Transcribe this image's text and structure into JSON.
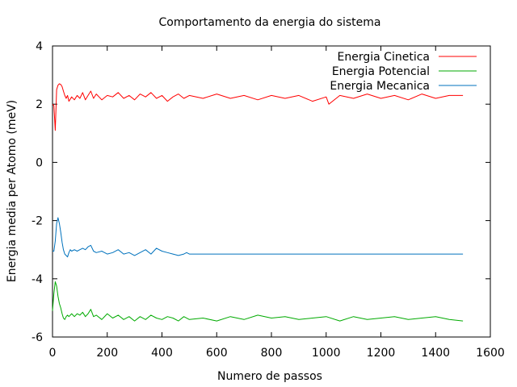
{
  "chart_data": {
    "type": "line",
    "title": "Comportamento da energia do sistema",
    "xlabel": "Numero de passos",
    "ylabel": "Energia media per Atomo (meV)",
    "xlim": [
      0,
      1600
    ],
    "ylim": [
      -6,
      4
    ],
    "xticks": [
      "0",
      "200",
      "400",
      "600",
      "800",
      "1000",
      "1200",
      "1400",
      "1600"
    ],
    "yticks": [
      "-6",
      "-4",
      "-2",
      "0",
      "2",
      "4"
    ],
    "grid": false,
    "legend_position": "top-right",
    "series": [
      {
        "name": "Energia Cinetica",
        "color": "#ff0000",
        "x": [
          0,
          5,
          10,
          15,
          20,
          25,
          30,
          35,
          40,
          45,
          50,
          55,
          60,
          70,
          80,
          90,
          100,
          110,
          120,
          130,
          140,
          150,
          160,
          180,
          200,
          220,
          240,
          260,
          280,
          300,
          320,
          340,
          360,
          380,
          400,
          420,
          440,
          460,
          480,
          500,
          550,
          600,
          650,
          700,
          750,
          800,
          850,
          900,
          950,
          1000,
          1010,
          1050,
          1100,
          1150,
          1200,
          1250,
          1300,
          1350,
          1400,
          1450,
          1500
        ],
        "y": [
          2.0,
          1.95,
          1.1,
          2.5,
          2.65,
          2.7,
          2.68,
          2.6,
          2.45,
          2.3,
          2.2,
          2.3,
          2.1,
          2.25,
          2.15,
          2.3,
          2.2,
          2.4,
          2.15,
          2.3,
          2.45,
          2.2,
          2.35,
          2.15,
          2.3,
          2.25,
          2.4,
          2.2,
          2.3,
          2.15,
          2.35,
          2.25,
          2.4,
          2.2,
          2.3,
          2.1,
          2.25,
          2.35,
          2.2,
          2.3,
          2.2,
          2.35,
          2.2,
          2.3,
          2.15,
          2.3,
          2.2,
          2.3,
          2.1,
          2.25,
          2.0,
          2.3,
          2.2,
          2.35,
          2.2,
          2.3,
          2.15,
          2.35,
          2.2,
          2.3,
          2.3
        ]
      },
      {
        "name": "Energia Potencial",
        "color": "#00aa00",
        "x": [
          0,
          5,
          10,
          15,
          20,
          25,
          30,
          35,
          40,
          45,
          50,
          55,
          60,
          70,
          80,
          90,
          100,
          110,
          120,
          130,
          140,
          150,
          160,
          180,
          200,
          220,
          240,
          260,
          280,
          300,
          320,
          340,
          360,
          380,
          400,
          420,
          440,
          460,
          480,
          500,
          550,
          600,
          650,
          700,
          750,
          800,
          850,
          900,
          950,
          1000,
          1050,
          1100,
          1150,
          1200,
          1250,
          1300,
          1350,
          1400,
          1450,
          1500
        ],
        "y": [
          -5.1,
          -4.5,
          -4.1,
          -4.25,
          -4.6,
          -4.85,
          -5.0,
          -5.2,
          -5.35,
          -5.4,
          -5.3,
          -5.25,
          -5.3,
          -5.2,
          -5.3,
          -5.2,
          -5.25,
          -5.15,
          -5.3,
          -5.2,
          -5.05,
          -5.3,
          -5.25,
          -5.4,
          -5.2,
          -5.35,
          -5.25,
          -5.4,
          -5.3,
          -5.45,
          -5.3,
          -5.4,
          -5.25,
          -5.35,
          -5.4,
          -5.3,
          -5.35,
          -5.45,
          -5.3,
          -5.4,
          -5.35,
          -5.45,
          -5.3,
          -5.4,
          -5.25,
          -5.35,
          -5.3,
          -5.4,
          -5.35,
          -5.3,
          -5.45,
          -5.3,
          -5.4,
          -5.35,
          -5.3,
          -5.4,
          -5.35,
          -5.3,
          -5.4,
          -5.45
        ]
      },
      {
        "name": "Energia Mecanica",
        "color": "#0072bd",
        "x": [
          0,
          5,
          10,
          15,
          20,
          25,
          30,
          35,
          40,
          45,
          50,
          55,
          60,
          65,
          70,
          80,
          90,
          100,
          110,
          120,
          130,
          140,
          150,
          160,
          180,
          200,
          220,
          240,
          260,
          280,
          300,
          320,
          340,
          360,
          380,
          400,
          420,
          440,
          460,
          480,
          490,
          500,
          1500
        ],
        "y": [
          -3.05,
          -3.05,
          -2.7,
          -2.1,
          -1.9,
          -2.1,
          -2.4,
          -2.75,
          -3.0,
          -3.15,
          -3.2,
          -3.25,
          -3.1,
          -3.0,
          -3.05,
          -3.0,
          -3.05,
          -3.0,
          -2.95,
          -3.0,
          -2.9,
          -2.85,
          -3.05,
          -3.1,
          -3.05,
          -3.15,
          -3.1,
          -3.0,
          -3.15,
          -3.1,
          -3.2,
          -3.1,
          -3.0,
          -3.15,
          -2.95,
          -3.05,
          -3.1,
          -3.15,
          -3.2,
          -3.15,
          -3.1,
          -3.15,
          -3.15
        ]
      }
    ]
  }
}
